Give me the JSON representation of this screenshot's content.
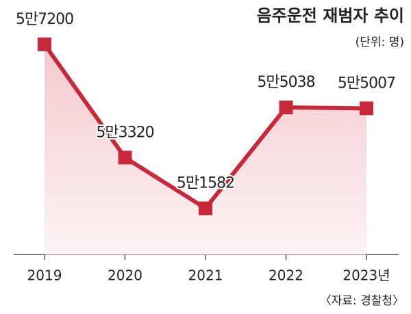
{
  "chart_data": {
    "type": "line",
    "title": "음주운전 재범자 추이",
    "subtitle": "(단위: 명)",
    "source": "〈자료: 경찰청〉",
    "categories": [
      "2019",
      "2020",
      "2021",
      "2022",
      "2023년"
    ],
    "values": [
      57200,
      53320,
      51582,
      55038,
      55007
    ],
    "value_labels": [
      "5만7200",
      "5만3320",
      "5만1582",
      "5만5038",
      "5만5007"
    ],
    "color": "#c8283a",
    "ylim": [
      50000,
      59000
    ]
  }
}
